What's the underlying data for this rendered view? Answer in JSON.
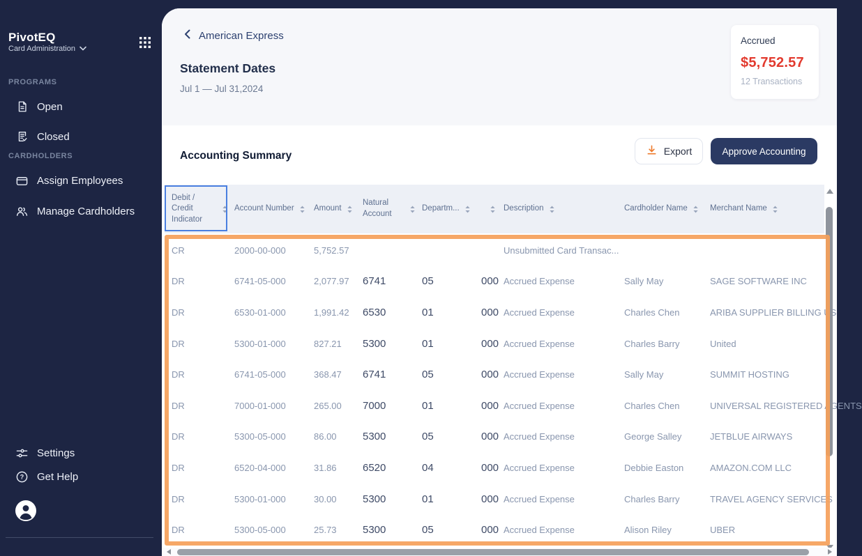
{
  "sidebar": {
    "brand": {
      "name": "PivotEQ",
      "subtitle": "Card Administration"
    },
    "sections": [
      {
        "label": "PROGRAMS",
        "items": [
          {
            "label": "Open",
            "icon": "document-icon"
          },
          {
            "label": "Closed",
            "icon": "document-check-icon"
          }
        ]
      },
      {
        "label": "CARDHOLDERS",
        "items": [
          {
            "label": "Assign Employees",
            "icon": "credit-card-icon"
          },
          {
            "label": "Manage Cardholders",
            "icon": "users-icon"
          }
        ]
      }
    ],
    "footer_items": [
      {
        "label": "Settings",
        "icon": "sliders-icon"
      },
      {
        "label": "Get Help",
        "icon": "help-circle-icon"
      }
    ]
  },
  "header": {
    "breadcrumb": "American Express",
    "title": "Statement Dates",
    "date_range": "Jul 1 — Jul 31,2024",
    "accrued_card": {
      "label": "Accrued",
      "amount": "$5,752.57",
      "transactions": "12 Transactions"
    }
  },
  "summary": {
    "title": "Accounting Summary",
    "export_label": "Export",
    "approve_label": "Approve Accounting"
  },
  "table": {
    "columns": [
      "Debit / Credit Indicator",
      "Account Number",
      "Amount",
      "Natural Account",
      "Departm...",
      "",
      "Description",
      "Cardholder Name",
      "Merchant Name"
    ],
    "rows": [
      {
        "dc": "CR",
        "account": "2000-00-000",
        "amount": "5,752.57",
        "natural": "",
        "dept": "",
        "cc": "",
        "description": "Unsubmitted Card Transac...",
        "cardholder": "",
        "merchant": ""
      },
      {
        "dc": "DR",
        "account": "6741-05-000",
        "amount": "2,077.97",
        "natural": "6741",
        "dept": "05",
        "cc": "000",
        "description": "Accrued Expense",
        "cardholder": "Sally May",
        "merchant": "SAGE SOFTWARE INC"
      },
      {
        "dc": "DR",
        "account": "6530-01-000",
        "amount": "1,991.42",
        "natural": "6530",
        "dept": "01",
        "cc": "000",
        "description": "Accrued Expense",
        "cardholder": "Charles Chen",
        "merchant": "ARIBA SUPPLIER BILLING US"
      },
      {
        "dc": "DR",
        "account": "5300-01-000",
        "amount": "827.21",
        "natural": "5300",
        "dept": "01",
        "cc": "000",
        "description": "Accrued Expense",
        "cardholder": "Charles Barry",
        "merchant": "United"
      },
      {
        "dc": "DR",
        "account": "6741-05-000",
        "amount": "368.47",
        "natural": "6741",
        "dept": "05",
        "cc": "000",
        "description": "Accrued Expense",
        "cardholder": "Sally May",
        "merchant": "SUMMIT HOSTING"
      },
      {
        "dc": "DR",
        "account": "7000-01-000",
        "amount": "265.00",
        "natural": "7000",
        "dept": "01",
        "cc": "000",
        "description": "Accrued Expense",
        "cardholder": "Charles Chen",
        "merchant": "UNIVERSAL REGISTERED AGENTS"
      },
      {
        "dc": "DR",
        "account": "5300-05-000",
        "amount": "86.00",
        "natural": "5300",
        "dept": "05",
        "cc": "000",
        "description": "Accrued Expense",
        "cardholder": "George Salley",
        "merchant": "JETBLUE AIRWAYS"
      },
      {
        "dc": "DR",
        "account": "6520-04-000",
        "amount": "31.86",
        "natural": "6520",
        "dept": "04",
        "cc": "000",
        "description": "Accrued Expense",
        "cardholder": "Debbie Easton",
        "merchant": "AMAZON.COM LLC"
      },
      {
        "dc": "DR",
        "account": "5300-01-000",
        "amount": "30.00",
        "natural": "5300",
        "dept": "01",
        "cc": "000",
        "description": "Accrued Expense",
        "cardholder": "Charles Barry",
        "merchant": "TRAVEL AGENCY SERVICES"
      },
      {
        "dc": "DR",
        "account": "5300-05-000",
        "amount": "25.73",
        "natural": "5300",
        "dept": "05",
        "cc": "000",
        "description": "Accrued Expense",
        "cardholder": "Alison Riley",
        "merchant": "UBER"
      }
    ]
  },
  "colors": {
    "navy_background": "#1d2543",
    "approve_button": "#2b3a63",
    "accrued_red": "#e23a2e",
    "highlight_orange": "#f59f5a",
    "focus_blue": "#4a7fe0",
    "table_header_bg": "#edf0f6"
  }
}
